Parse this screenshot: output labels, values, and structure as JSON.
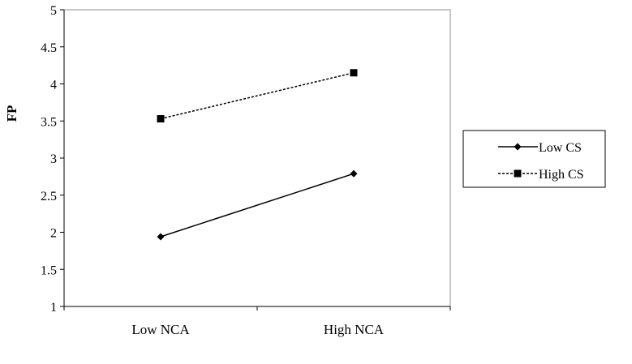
{
  "chart_data": {
    "type": "line",
    "title": "",
    "xlabel": "",
    "ylabel": "FP",
    "categories": [
      "Low NCA",
      "High NCA"
    ],
    "ylim": [
      1,
      5
    ],
    "yticks": [
      "1",
      "1.5",
      "2",
      "2.5",
      "3",
      "3.5",
      "4",
      "4.5",
      "5"
    ],
    "grid": false,
    "legend_position": "right",
    "series": [
      {
        "name": "Low CS",
        "values": [
          1.94,
          2.79
        ],
        "marker": "diamond",
        "line": "solid",
        "color": "#000000"
      },
      {
        "name": "High CS",
        "values": [
          3.53,
          4.15
        ],
        "marker": "square",
        "line": "dashed",
        "color": "#000000"
      }
    ]
  }
}
